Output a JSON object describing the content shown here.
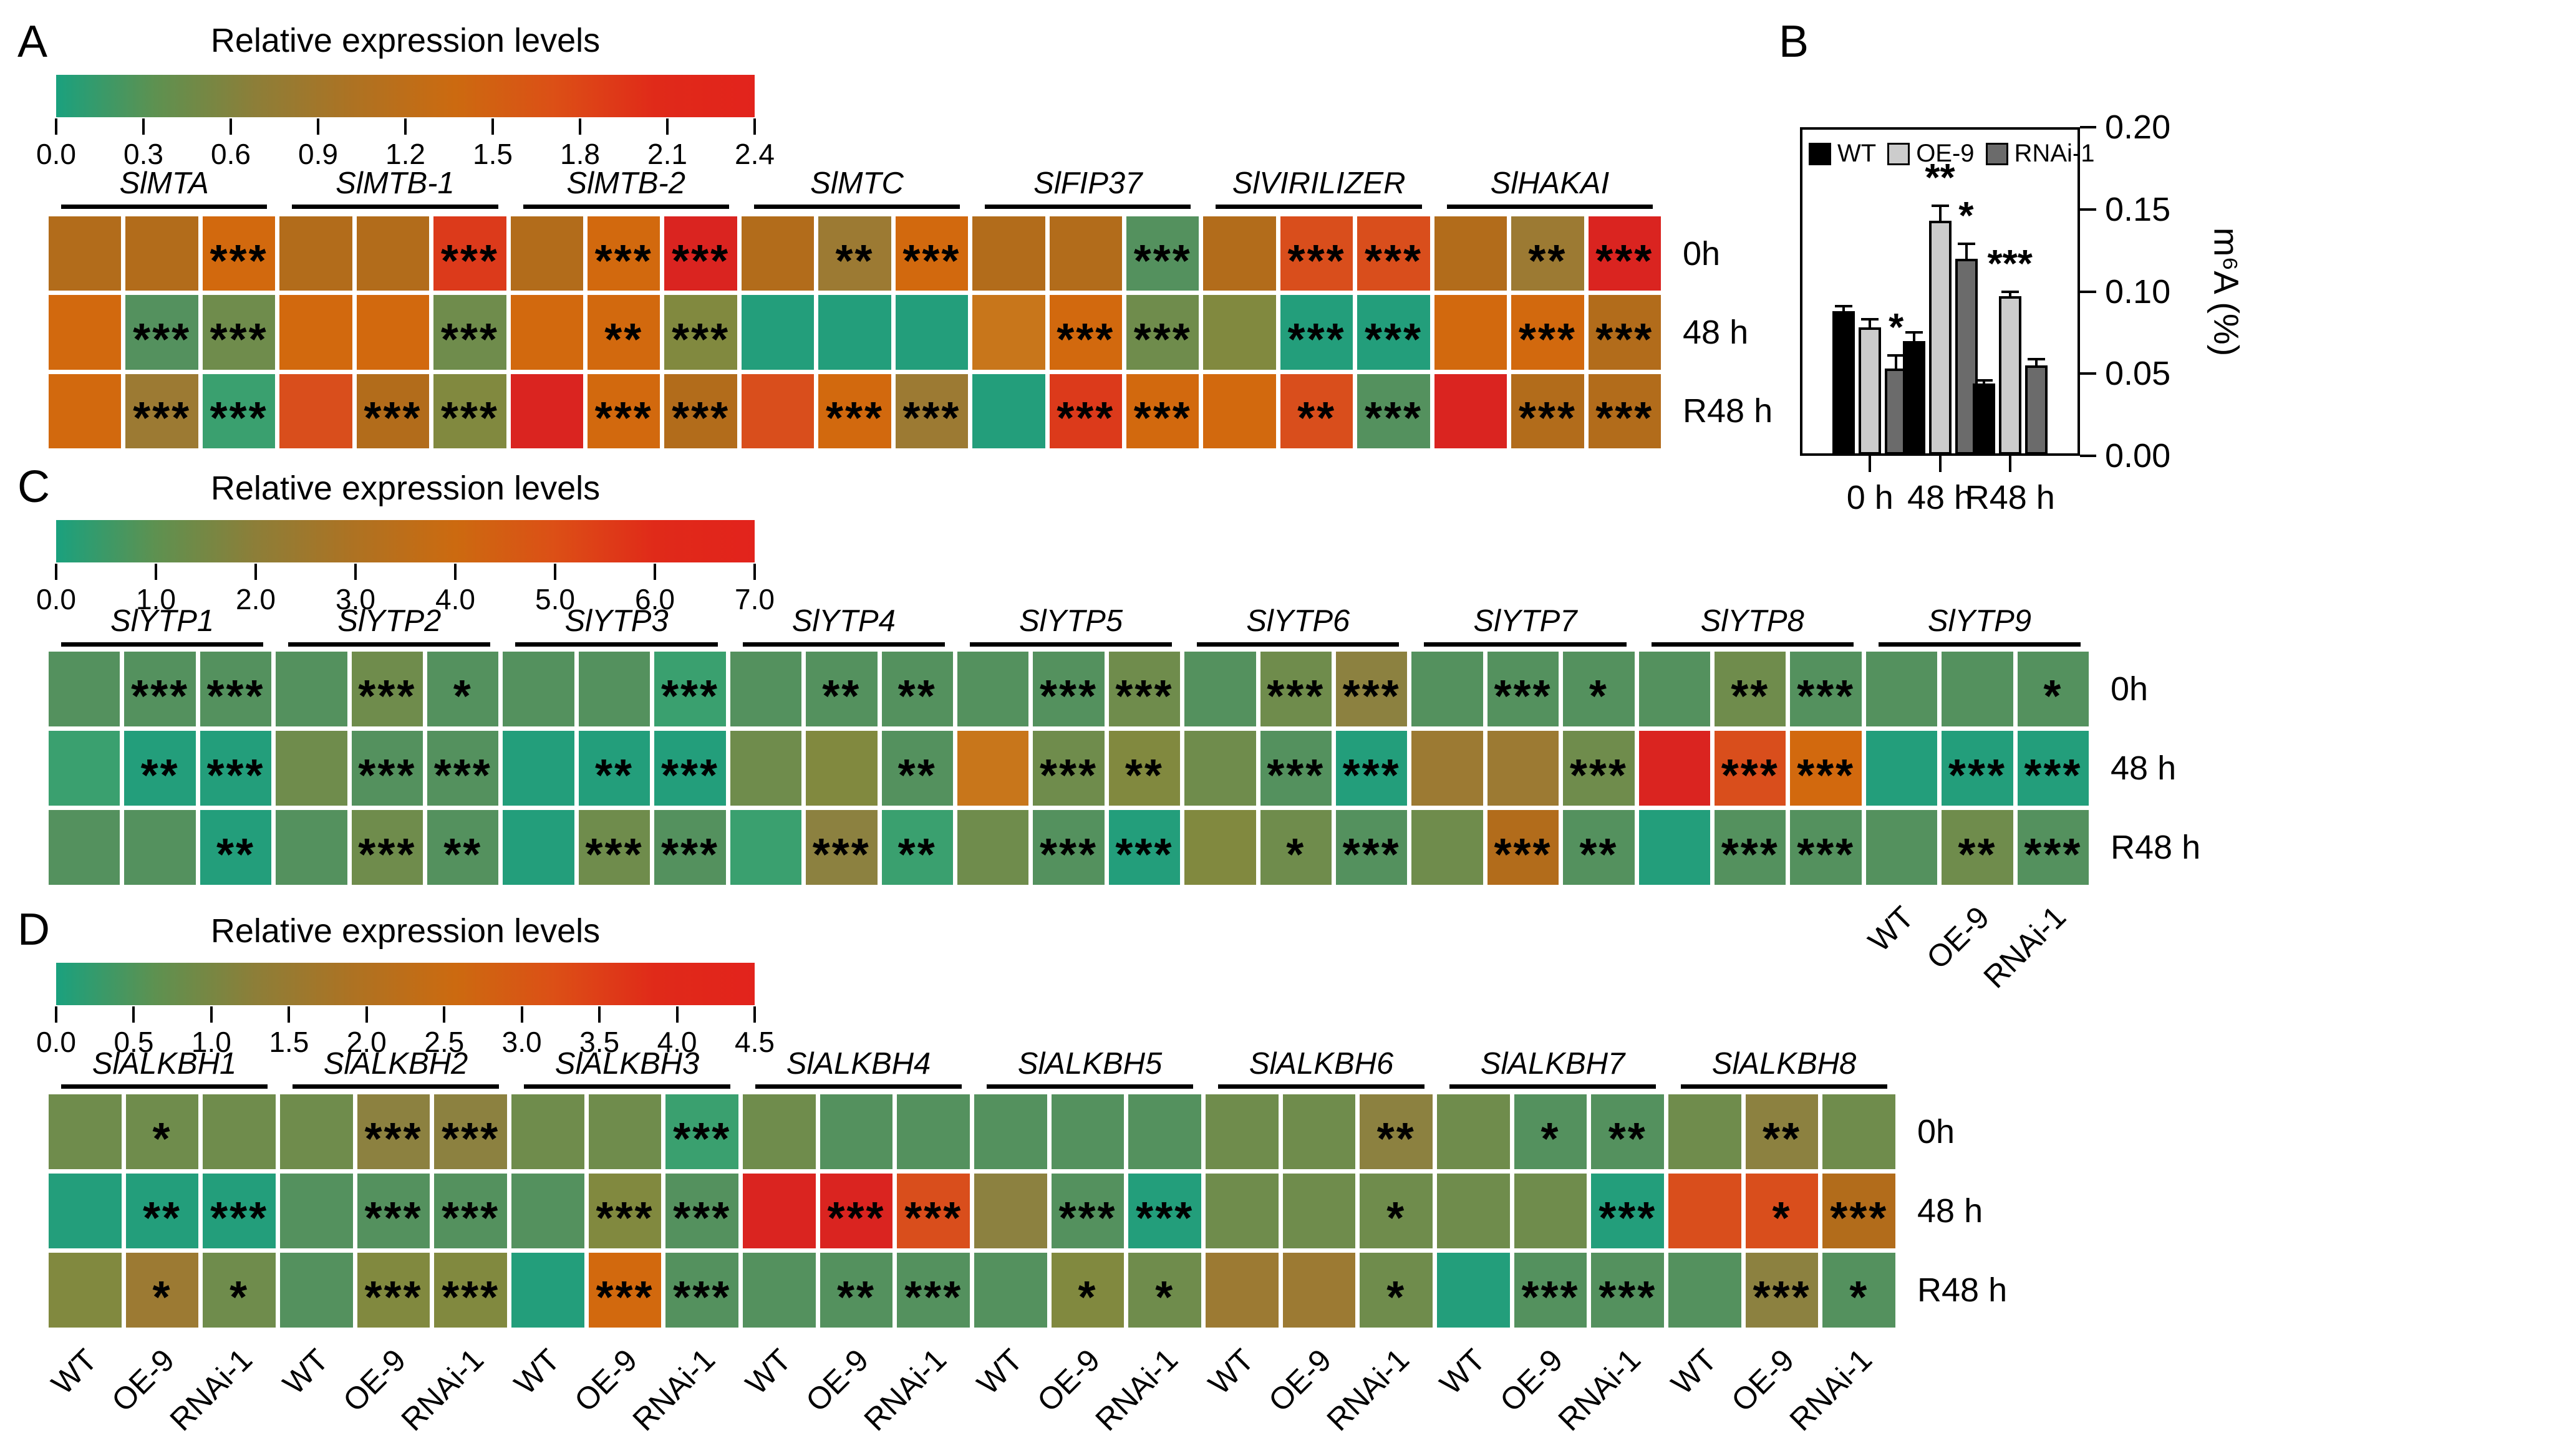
{
  "figure": {
    "background": "#FFFFFF",
    "palette": {
      "teal": "#239E7B",
      "tealGreen": "#3AA06F",
      "green": "#54915E",
      "oliveGreen": "#6F8C4C",
      "olive": "#81893F",
      "mustard": "#8C8140",
      "brownOlive": "#9C7A33",
      "brown": "#B26C1B",
      "orangeBrown": "#C8761B",
      "orange": "#D2690E",
      "orangeRed": "#D94E1C",
      "redOrange": "#DC3A1B",
      "red": "#DA2420"
    },
    "colorbar_gradient": [
      "#1AA17E",
      "#5E9150",
      "#8D7E38",
      "#AE7222",
      "#CC6A10",
      "#DC4F16",
      "#E02A19",
      "#E2231C"
    ]
  },
  "panels": {
    "A": {
      "label": "A"
    },
    "B": {
      "label": "B"
    },
    "C": {
      "label": "C"
    },
    "D": {
      "label": "D"
    }
  },
  "chart_data": [
    {
      "id": "A",
      "type": "heatmap",
      "title": "Relative expression levels",
      "scale": {
        "min": 0.0,
        "max": 2.4,
        "ticks": [
          "0.0",
          "0.3",
          "0.6",
          "0.9",
          "1.2",
          "1.5",
          "1.8",
          "2.1",
          "2.4"
        ]
      },
      "genes": [
        "SlMTA",
        "SlMTB-1",
        "SlMTB-2",
        "SlMTC",
        "SlFIP37",
        "SlVIRILIZER",
        "SlHAKAI"
      ],
      "columns_per_gene": [
        "WT",
        "OE-9",
        "RNAi-1"
      ],
      "rows": [
        "0h",
        "48 h",
        "R48 h"
      ],
      "cells": [
        [
          [
            "brown",
            ""
          ],
          [
            "brown",
            ""
          ],
          [
            "orange",
            "***"
          ],
          [
            "brown",
            ""
          ],
          [
            "brown",
            ""
          ],
          [
            "redOrange",
            "***"
          ],
          [
            "brown",
            ""
          ],
          [
            "orange",
            "***"
          ],
          [
            "red",
            "***"
          ],
          [
            "brown",
            ""
          ],
          [
            "brownOlive",
            "**"
          ],
          [
            "orange",
            "***"
          ],
          [
            "brown",
            ""
          ],
          [
            "brown",
            ""
          ],
          [
            "green",
            "***"
          ],
          [
            "brown",
            ""
          ],
          [
            "orangeRed",
            "***"
          ],
          [
            "orangeRed",
            "***"
          ],
          [
            "brown",
            ""
          ],
          [
            "brownOlive",
            "**"
          ],
          [
            "red",
            "***"
          ]
        ],
        [
          [
            "orange",
            ""
          ],
          [
            "green",
            "***"
          ],
          [
            "oliveGreen",
            "***"
          ],
          [
            "orange",
            ""
          ],
          [
            "orange",
            ""
          ],
          [
            "oliveGreen",
            "***"
          ],
          [
            "orange",
            ""
          ],
          [
            "orange",
            "**"
          ],
          [
            "olive",
            "***"
          ],
          [
            "teal",
            ""
          ],
          [
            "teal",
            ""
          ],
          [
            "teal",
            ""
          ],
          [
            "orangeBrown",
            ""
          ],
          [
            "orange",
            "***"
          ],
          [
            "oliveGreen",
            "***"
          ],
          [
            "olive",
            ""
          ],
          [
            "teal",
            "***"
          ],
          [
            "teal",
            "***"
          ],
          [
            "orange",
            ""
          ],
          [
            "orange",
            "***"
          ],
          [
            "brown",
            "***"
          ]
        ],
        [
          [
            "orange",
            ""
          ],
          [
            "brownOlive",
            "***"
          ],
          [
            "tealGreen",
            "***"
          ],
          [
            "orangeRed",
            ""
          ],
          [
            "brown",
            "***"
          ],
          [
            "olive",
            "***"
          ],
          [
            "red",
            ""
          ],
          [
            "orange",
            "***"
          ],
          [
            "brown",
            "***"
          ],
          [
            "orangeRed",
            ""
          ],
          [
            "orange",
            "***"
          ],
          [
            "brownOlive",
            "***"
          ],
          [
            "teal",
            ""
          ],
          [
            "redOrange",
            "***"
          ],
          [
            "orange",
            "***"
          ],
          [
            "orange",
            ""
          ],
          [
            "orangeRed",
            "**"
          ],
          [
            "green",
            "***"
          ],
          [
            "red",
            ""
          ],
          [
            "brown",
            "***"
          ],
          [
            "brown",
            "***"
          ]
        ]
      ]
    },
    {
      "id": "B",
      "type": "bar",
      "categories": [
        "0 h",
        "48 h",
        "R48 h"
      ],
      "series": [
        {
          "name": "WT",
          "color": "#000000",
          "values": [
            0.088,
            0.07,
            0.044
          ],
          "errors": [
            0.003,
            0.005,
            0.002
          ],
          "sig": [
            "",
            "",
            ""
          ]
        },
        {
          "name": "OE-9",
          "color": "#CCCCCC",
          "values": [
            0.078,
            0.143,
            0.097
          ],
          "errors": [
            0.005,
            0.009,
            0.003
          ],
          "sig": [
            "",
            "**",
            "***"
          ]
        },
        {
          "name": "RNAi-1",
          "color": "#6B6B6B",
          "values": [
            0.053,
            0.12,
            0.055
          ],
          "errors": [
            0.008,
            0.009,
            0.004
          ],
          "sig": [
            "*",
            "*",
            ""
          ]
        }
      ],
      "ylabel": "m⁶A (%)",
      "ylim": [
        0,
        0.2
      ],
      "yticks": [
        "0.00",
        "0.05",
        "0.10",
        "0.15",
        "0.20"
      ],
      "legend_position": "top-left",
      "grid": false
    },
    {
      "id": "C",
      "type": "heatmap",
      "title": "Relative expression levels",
      "scale": {
        "min": 0.0,
        "max": 7.0,
        "ticks": [
          "0.0",
          "1.0",
          "2.0",
          "3.0",
          "4.0",
          "5.0",
          "6.0",
          "7.0"
        ]
      },
      "genes": [
        "SlYTP1",
        "SlYTP2",
        "SlYTP3",
        "SlYTP4",
        "SlYTP5",
        "SlYTP6",
        "SlYTP7",
        "SlYTP8",
        "SlYTP9"
      ],
      "columns_per_gene": [
        "WT",
        "OE-9",
        "RNAi-1"
      ],
      "rows": [
        "0h",
        "48 h",
        "R48 h"
      ],
      "cells": [
        [
          [
            "green",
            ""
          ],
          [
            "green",
            "***"
          ],
          [
            "green",
            "***"
          ],
          [
            "green",
            ""
          ],
          [
            "oliveGreen",
            "***"
          ],
          [
            "green",
            "*"
          ],
          [
            "green",
            ""
          ],
          [
            "green",
            ""
          ],
          [
            "tealGreen",
            "***"
          ],
          [
            "green",
            ""
          ],
          [
            "green",
            "**"
          ],
          [
            "green",
            "**"
          ],
          [
            "green",
            ""
          ],
          [
            "green",
            "***"
          ],
          [
            "oliveGreen",
            "***"
          ],
          [
            "green",
            ""
          ],
          [
            "oliveGreen",
            "***"
          ],
          [
            "mustard",
            "***"
          ],
          [
            "green",
            ""
          ],
          [
            "green",
            "***"
          ],
          [
            "green",
            "*"
          ],
          [
            "green",
            ""
          ],
          [
            "oliveGreen",
            "**"
          ],
          [
            "green",
            "***"
          ],
          [
            "green",
            ""
          ],
          [
            "green",
            ""
          ],
          [
            "green",
            "*"
          ]
        ],
        [
          [
            "tealGreen",
            ""
          ],
          [
            "teal",
            "**"
          ],
          [
            "teal",
            "***"
          ],
          [
            "oliveGreen",
            ""
          ],
          [
            "green",
            "***"
          ],
          [
            "green",
            "***"
          ],
          [
            "teal",
            ""
          ],
          [
            "teal",
            "**"
          ],
          [
            "teal",
            "***"
          ],
          [
            "oliveGreen",
            ""
          ],
          [
            "olive",
            ""
          ],
          [
            "green",
            "**"
          ],
          [
            "orangeBrown",
            ""
          ],
          [
            "oliveGreen",
            "***"
          ],
          [
            "olive",
            "**"
          ],
          [
            "oliveGreen",
            ""
          ],
          [
            "green",
            "***"
          ],
          [
            "teal",
            "***"
          ],
          [
            "brownOlive",
            ""
          ],
          [
            "brownOlive",
            ""
          ],
          [
            "oliveGreen",
            "***"
          ],
          [
            "red",
            ""
          ],
          [
            "orangeRed",
            "***"
          ],
          [
            "orange",
            "***"
          ],
          [
            "teal",
            ""
          ],
          [
            "teal",
            "***"
          ],
          [
            "teal",
            "***"
          ]
        ],
        [
          [
            "green",
            ""
          ],
          [
            "green",
            ""
          ],
          [
            "teal",
            "**"
          ],
          [
            "green",
            ""
          ],
          [
            "oliveGreen",
            "***"
          ],
          [
            "green",
            "**"
          ],
          [
            "teal",
            ""
          ],
          [
            "oliveGreen",
            "***"
          ],
          [
            "green",
            "***"
          ],
          [
            "tealGreen",
            ""
          ],
          [
            "mustard",
            "***"
          ],
          [
            "tealGreen",
            "**"
          ],
          [
            "oliveGreen",
            ""
          ],
          [
            "green",
            "***"
          ],
          [
            "teal",
            "***"
          ],
          [
            "olive",
            ""
          ],
          [
            "oliveGreen",
            "*"
          ],
          [
            "green",
            "***"
          ],
          [
            "oliveGreen",
            ""
          ],
          [
            "brown",
            "***"
          ],
          [
            "green",
            "**"
          ],
          [
            "teal",
            ""
          ],
          [
            "green",
            "***"
          ],
          [
            "green",
            "***"
          ],
          [
            "green",
            ""
          ],
          [
            "oliveGreen",
            "**"
          ],
          [
            "green",
            "***"
          ]
        ]
      ],
      "bottom_labels": "last-group-only"
    },
    {
      "id": "D",
      "type": "heatmap",
      "title": "Relative expression levels",
      "scale": {
        "min": 0.0,
        "max": 4.5,
        "ticks": [
          "0.0",
          "0.5",
          "1.0",
          "1.5",
          "2.0",
          "2.5",
          "3.0",
          "3.5",
          "4.0",
          "4.5"
        ]
      },
      "genes": [
        "SlALKBH1",
        "SlALKBH2",
        "SlALKBH3",
        "SlALKBH4",
        "SlALKBH5",
        "SlALKBH6",
        "SlALKBH7",
        "SlALKBH8"
      ],
      "columns_per_gene": [
        "WT",
        "OE-9",
        "RNAi-1"
      ],
      "rows": [
        "0h",
        "48 h",
        "R48 h"
      ],
      "cells": [
        [
          [
            "oliveGreen",
            ""
          ],
          [
            "oliveGreen",
            "*"
          ],
          [
            "oliveGreen",
            ""
          ],
          [
            "oliveGreen",
            ""
          ],
          [
            "mustard",
            "***"
          ],
          [
            "mustard",
            "***"
          ],
          [
            "oliveGreen",
            ""
          ],
          [
            "oliveGreen",
            ""
          ],
          [
            "tealGreen",
            "***"
          ],
          [
            "oliveGreen",
            ""
          ],
          [
            "green",
            ""
          ],
          [
            "green",
            ""
          ],
          [
            "green",
            ""
          ],
          [
            "green",
            ""
          ],
          [
            "green",
            ""
          ],
          [
            "oliveGreen",
            ""
          ],
          [
            "oliveGreen",
            ""
          ],
          [
            "mustard",
            "**"
          ],
          [
            "oliveGreen",
            ""
          ],
          [
            "green",
            "*"
          ],
          [
            "green",
            "**"
          ],
          [
            "oliveGreen",
            ""
          ],
          [
            "mustard",
            "**"
          ],
          [
            "oliveGreen",
            ""
          ]
        ],
        [
          [
            "teal",
            ""
          ],
          [
            "teal",
            "**"
          ],
          [
            "teal",
            "***"
          ],
          [
            "green",
            ""
          ],
          [
            "green",
            "***"
          ],
          [
            "green",
            "***"
          ],
          [
            "green",
            ""
          ],
          [
            "olive",
            "***"
          ],
          [
            "green",
            "***"
          ],
          [
            "red",
            ""
          ],
          [
            "red",
            "***"
          ],
          [
            "orangeRed",
            "***"
          ],
          [
            "mustard",
            ""
          ],
          [
            "green",
            "***"
          ],
          [
            "teal",
            "***"
          ],
          [
            "oliveGreen",
            ""
          ],
          [
            "oliveGreen",
            ""
          ],
          [
            "oliveGreen",
            "*"
          ],
          [
            "oliveGreen",
            ""
          ],
          [
            "oliveGreen",
            ""
          ],
          [
            "teal",
            "***"
          ],
          [
            "orangeRed",
            ""
          ],
          [
            "orangeRed",
            "*"
          ],
          [
            "brown",
            "***"
          ]
        ],
        [
          [
            "olive",
            ""
          ],
          [
            "brownOlive",
            "*"
          ],
          [
            "oliveGreen",
            "*"
          ],
          [
            "green",
            ""
          ],
          [
            "olive",
            "***"
          ],
          [
            "olive",
            "***"
          ],
          [
            "teal",
            ""
          ],
          [
            "orange",
            "***"
          ],
          [
            "green",
            "***"
          ],
          [
            "green",
            ""
          ],
          [
            "green",
            "**"
          ],
          [
            "green",
            "***"
          ],
          [
            "green",
            ""
          ],
          [
            "olive",
            "*"
          ],
          [
            "oliveGreen",
            "*"
          ],
          [
            "brownOlive",
            ""
          ],
          [
            "brownOlive",
            ""
          ],
          [
            "oliveGreen",
            "*"
          ],
          [
            "teal",
            ""
          ],
          [
            "green",
            "***"
          ],
          [
            "green",
            "***"
          ],
          [
            "green",
            ""
          ],
          [
            "mustard",
            "***"
          ],
          [
            "green",
            "*"
          ]
        ]
      ],
      "bottom_labels": "all"
    }
  ]
}
